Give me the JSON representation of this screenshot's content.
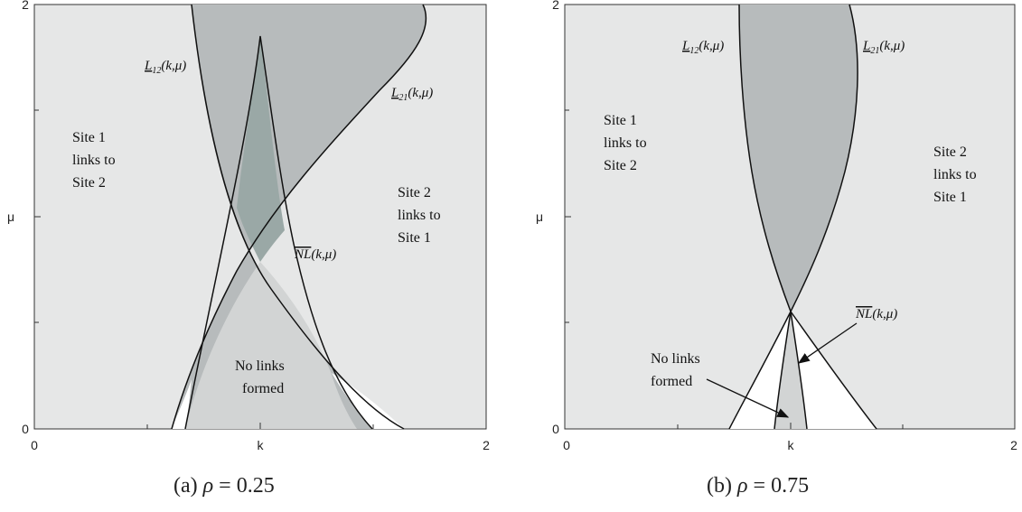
{
  "chart_data": [
    {
      "type": "area",
      "caption": {
        "label": "(a)",
        "symbol": "ρ",
        "equals": "=",
        "value": "0.25"
      },
      "xlabel": "k",
      "ylabel": "μ",
      "xlim": [
        0,
        2
      ],
      "ylim": [
        0,
        2
      ],
      "x_ticks": [
        "0",
        "2"
      ],
      "x_center_label": "k",
      "y_ticks": [
        "0",
        "2"
      ],
      "y_center_label": "μ",
      "colors": {
        "outer": "#e6e7e7",
        "no_links": "#d2d4d4",
        "overlap": "#b7bbbc",
        "deep": "#9aa8a6",
        "white": "#ffffff"
      },
      "curves": {
        "L12_lower": {
          "x": [
            0.66,
            0.82,
            1.0,
            1.18,
            1.33
          ],
          "y": [
            0,
            0.26,
            0.5,
            0.76,
            1.1
          ]
        },
        "L12_upper": {
          "x": [
            1.33,
            1.22,
            1.1,
            0.98,
            0.86,
            0.7
          ],
          "y": [
            1.1,
            1.35,
            1.6,
            1.83,
            1.96,
            2.0
          ]
        },
        "L21": {
          "x": [
            0.66,
            0.8,
            1.0,
            1.3,
            1.6,
            1.82,
            1.93,
            1.97,
            1.95
          ],
          "y": [
            0,
            0.2,
            0.4,
            0.75,
            1.15,
            1.5,
            1.8,
            1.95,
            2.0
          ]
        },
        "NL_left": {
          "x": [
            0.72,
            0.9,
            1.0
          ],
          "y": [
            0,
            1.0,
            1.85
          ]
        },
        "NL_right": {
          "x": [
            1.0,
            1.12,
            1.28
          ],
          "y": [
            1.85,
            0.8,
            0.0
          ]
        },
        "L12_base": {
          "x": [
            1.24,
            1.46
          ],
          "y": [
            0,
            0
          ]
        }
      },
      "labels": {
        "L12": {
          "name": "L",
          "sub": "12",
          "args": "(k,μ)"
        },
        "L21": {
          "name": "L",
          "sub": "21",
          "args": "(k,μ)"
        },
        "NL": {
          "name": "NL",
          "args": "(k,μ)"
        }
      },
      "region_labels": {
        "site1": [
          "Site 1",
          "links to",
          "Site 2"
        ],
        "site2": [
          "Site 2",
          "links to",
          "Site 1"
        ],
        "none": [
          "No links",
          "formed"
        ]
      }
    },
    {
      "type": "area",
      "caption": {
        "label": "(b)",
        "symbol": "ρ",
        "equals": "=",
        "value": "0.75"
      },
      "xlabel": "k",
      "ylabel": "μ",
      "xlim": [
        0,
        2
      ],
      "ylim": [
        0,
        2
      ],
      "x_ticks": [
        "0",
        "2"
      ],
      "x_center_label": "k",
      "y_ticks": [
        "0",
        "2"
      ],
      "y_center_label": "μ",
      "colors": {
        "outer": "#e6e7e7",
        "no_links": "#d2d4d4",
        "overlap": "#b7bbbc",
        "white": "#ffffff"
      },
      "labels": {
        "L12": {
          "name": "L",
          "sub": "12",
          "args": "(k,μ)"
        },
        "L21": {
          "name": "L",
          "sub": "21",
          "args": "(k,μ)"
        },
        "NL": {
          "name": "NL",
          "args": "(k,μ)"
        }
      },
      "region_labels": {
        "site1": [
          "Site 1",
          "links to",
          "Site 2"
        ],
        "site2": [
          "Site 2",
          "links to",
          "Site 1"
        ],
        "none": [
          "No links",
          "formed"
        ]
      }
    }
  ]
}
